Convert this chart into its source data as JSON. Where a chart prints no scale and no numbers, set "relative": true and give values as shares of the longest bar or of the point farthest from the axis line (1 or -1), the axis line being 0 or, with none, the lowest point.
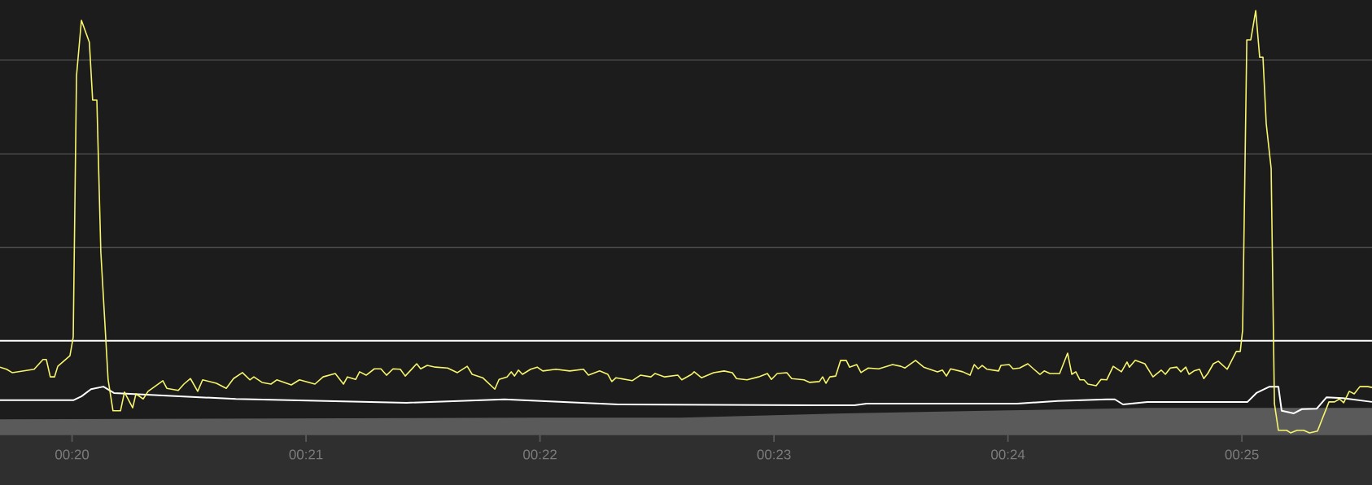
{
  "chart_data": {
    "type": "line",
    "relative": true,
    "xlim": [
      19.692,
      25.556
    ],
    "xticks": [
      {
        "value": 20,
        "label": "00:20"
      },
      {
        "value": 21,
        "label": "00:21"
      },
      {
        "value": 22,
        "label": "00:22"
      },
      {
        "value": 23,
        "label": "00:23"
      },
      {
        "value": 24,
        "label": "00:24"
      },
      {
        "value": 25,
        "label": "00:25"
      }
    ],
    "ref_lines": [
      {
        "axis": "y",
        "value": 0.221,
        "color": "#ffffff"
      },
      {
        "axis": "y",
        "value": 0.441,
        "color": "#4e4e4e"
      },
      {
        "axis": "y",
        "value": 0.662,
        "color": "#4e4e4e"
      },
      {
        "axis": "y",
        "value": 0.883,
        "color": "#4e4e4e"
      }
    ],
    "series": [
      {
        "type": "area",
        "color": "#5a5a5a",
        "x": [
          19.692,
          22.0,
          22.6,
          23.3,
          24.0,
          24.6,
          25.556
        ],
        "values": [
          0.036,
          0.04,
          0.04,
          0.05,
          0.057,
          0.063,
          0.063
        ]
      },
      {
        "color": "#ffffff",
        "x": [
          19.692,
          20.005,
          20.04,
          20.081,
          20.134,
          20.179,
          20.388,
          20.7,
          21.43,
          21.848,
          22.335,
          23.17,
          23.344,
          23.396,
          24.04,
          24.213,
          24.422,
          24.457,
          24.492,
          24.596,
          25.024,
          25.062,
          25.118,
          25.156,
          25.17,
          25.222,
          25.257,
          25.32,
          25.362,
          25.431,
          25.556
        ],
        "values": [
          0.081,
          0.081,
          0.09,
          0.107,
          0.113,
          0.098,
          0.092,
          0.084,
          0.075,
          0.083,
          0.071,
          0.069,
          0.069,
          0.073,
          0.073,
          0.079,
          0.083,
          0.083,
          0.071,
          0.077,
          0.077,
          0.098,
          0.113,
          0.113,
          0.056,
          0.05,
          0.06,
          0.061,
          0.088,
          0.086,
          0.077
        ]
      },
      {
        "color": "#f7f56b",
        "x": [
          19.692,
          19.72,
          19.744,
          19.838,
          19.876,
          19.89,
          19.907,
          19.925,
          19.939,
          19.991,
          20.005,
          20.019,
          20.04,
          20.074,
          20.088,
          20.106,
          20.123,
          20.154,
          20.175,
          20.207,
          20.224,
          20.259,
          20.273,
          20.304,
          20.325,
          20.353,
          20.388,
          20.405,
          20.454,
          20.478,
          20.506,
          20.537,
          20.558,
          20.617,
          20.659,
          20.69,
          20.728,
          20.76,
          20.777,
          20.812,
          20.85,
          20.875,
          20.937,
          20.972,
          21.038,
          21.073,
          21.125,
          21.16,
          21.177,
          21.212,
          21.229,
          21.257,
          21.292,
          21.32,
          21.344,
          21.372,
          21.403,
          21.424,
          21.473,
          21.49,
          21.518,
          21.553,
          21.605,
          21.647,
          21.689,
          21.71,
          21.755,
          21.807,
          21.825,
          21.859,
          21.877,
          21.891,
          21.908,
          21.925,
          21.96,
          21.988,
          22.012,
          22.068,
          22.127,
          22.186,
          22.207,
          22.255,
          22.29,
          22.307,
          22.325,
          22.394,
          22.429,
          22.474,
          22.492,
          22.533,
          22.589,
          22.606,
          22.648,
          22.659,
          22.69,
          22.742,
          22.787,
          22.822,
          22.84,
          22.885,
          22.934,
          22.972,
          22.989,
          23.014,
          23.055,
          23.076,
          23.128,
          23.153,
          23.194,
          23.208,
          23.222,
          23.239,
          23.264,
          23.285,
          23.309,
          23.323,
          23.354,
          23.372,
          23.403,
          23.448,
          23.507,
          23.542,
          23.56,
          23.605,
          23.64,
          23.699,
          23.72,
          23.737,
          23.755,
          23.807,
          23.838,
          23.856,
          23.873,
          23.89,
          23.911,
          23.96,
          23.97,
          24.005,
          24.022,
          24.05,
          24.085,
          24.109,
          24.137,
          24.155,
          24.179,
          24.221,
          24.255,
          24.273,
          24.29,
          24.308,
          24.325,
          24.342,
          24.377,
          24.398,
          24.422,
          24.45,
          24.485,
          24.509,
          24.519,
          24.544,
          24.585,
          24.62,
          24.655,
          24.673,
          24.694,
          24.722,
          24.739,
          24.76,
          24.774,
          24.795,
          24.819,
          24.837,
          24.854,
          24.878,
          24.899,
          24.937,
          24.976,
          24.993,
          25.003,
          25.021,
          25.038,
          25.059,
          25.076,
          25.09,
          25.104,
          25.125,
          25.139,
          25.156,
          25.191,
          25.208,
          25.236,
          25.264,
          25.289,
          25.323,
          25.372,
          25.396,
          25.417,
          25.435,
          25.459,
          25.48,
          25.504,
          25.539,
          25.556
        ],
        "values": [
          0.159,
          0.154,
          0.146,
          0.154,
          0.177,
          0.177,
          0.136,
          0.136,
          0.161,
          0.186,
          0.23,
          0.846,
          0.977,
          0.925,
          0.789,
          0.789,
          0.43,
          0.13,
          0.056,
          0.056,
          0.1,
          0.063,
          0.096,
          0.084,
          0.102,
          0.113,
          0.127,
          0.109,
          0.104,
          0.119,
          0.132,
          0.102,
          0.129,
          0.121,
          0.109,
          0.132,
          0.146,
          0.129,
          0.136,
          0.123,
          0.119,
          0.129,
          0.117,
          0.129,
          0.119,
          0.136,
          0.144,
          0.119,
          0.136,
          0.13,
          0.148,
          0.14,
          0.155,
          0.155,
          0.14,
          0.155,
          0.154,
          0.138,
          0.167,
          0.155,
          0.163,
          0.159,
          0.157,
          0.146,
          0.161,
          0.142,
          0.134,
          0.107,
          0.13,
          0.136,
          0.148,
          0.138,
          0.152,
          0.142,
          0.154,
          0.159,
          0.15,
          0.154,
          0.15,
          0.154,
          0.14,
          0.15,
          0.142,
          0.125,
          0.134,
          0.127,
          0.14,
          0.136,
          0.144,
          0.136,
          0.14,
          0.129,
          0.142,
          0.148,
          0.134,
          0.146,
          0.15,
          0.146,
          0.132,
          0.129,
          0.136,
          0.144,
          0.13,
          0.144,
          0.146,
          0.132,
          0.129,
          0.123,
          0.125,
          0.136,
          0.121,
          0.136,
          0.138,
          0.175,
          0.175,
          0.159,
          0.165,
          0.146,
          0.157,
          0.155,
          0.165,
          0.161,
          0.157,
          0.175,
          0.159,
          0.148,
          0.152,
          0.138,
          0.155,
          0.148,
          0.14,
          0.165,
          0.155,
          0.163,
          0.154,
          0.15,
          0.163,
          0.165,
          0.155,
          0.157,
          0.167,
          0.155,
          0.142,
          0.15,
          0.144,
          0.144,
          0.192,
          0.142,
          0.148,
          0.129,
          0.129,
          0.119,
          0.115,
          0.13,
          0.129,
          0.161,
          0.148,
          0.171,
          0.159,
          0.175,
          0.167,
          0.136,
          0.152,
          0.142,
          0.157,
          0.159,
          0.148,
          0.159,
          0.142,
          0.15,
          0.154,
          0.132,
          0.144,
          0.167,
          0.173,
          0.154,
          0.196,
          0.196,
          0.246,
          0.931,
          0.931,
          1.0,
          0.89,
          0.89,
          0.733,
          0.628,
          0.073,
          0.01,
          0.01,
          0.004,
          0.01,
          0.01,
          0.004,
          0.008,
          0.077,
          0.077,
          0.084,
          0.075,
          0.102,
          0.096,
          0.113,
          0.113,
          0.111
        ]
      }
    ]
  }
}
